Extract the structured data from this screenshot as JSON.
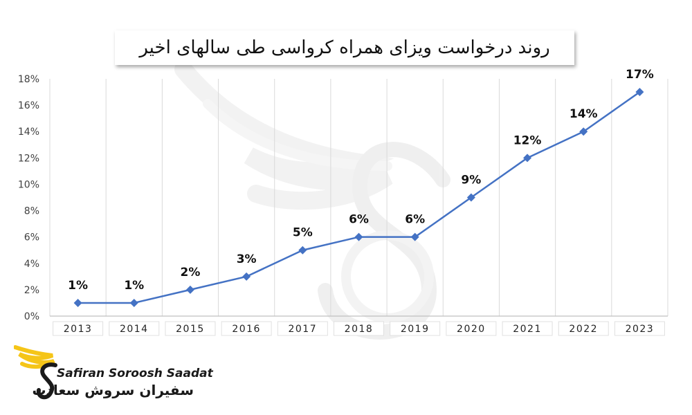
{
  "chart_data": {
    "type": "line",
    "title": "روند درخواست ویزای همراه کرواسی طی سالهای اخیر",
    "categories": [
      "2013",
      "2014",
      "2015",
      "2016",
      "2017",
      "2018",
      "2019",
      "2020",
      "2021",
      "2022",
      "2023"
    ],
    "values": [
      1,
      1,
      2,
      3,
      5,
      6,
      6,
      9,
      12,
      14,
      17
    ],
    "data_labels": [
      "1%",
      "1%",
      "2%",
      "3%",
      "5%",
      "6%",
      "6%",
      "9%",
      "12%",
      "14%",
      "17%"
    ],
    "y_ticks": [
      "0%",
      "2%",
      "4%",
      "6%",
      "8%",
      "10%",
      "12%",
      "14%",
      "16%",
      "18%"
    ],
    "ylim": [
      0,
      18
    ],
    "y_step": 2,
    "grid": "vertical",
    "line_color": "#4472c4",
    "marker": "diamond"
  },
  "logo": {
    "name_en": "Safiran Soroosh Saadat",
    "name_fa": "سفیران سروش سعادت",
    "accent_color": "#f5c518"
  }
}
